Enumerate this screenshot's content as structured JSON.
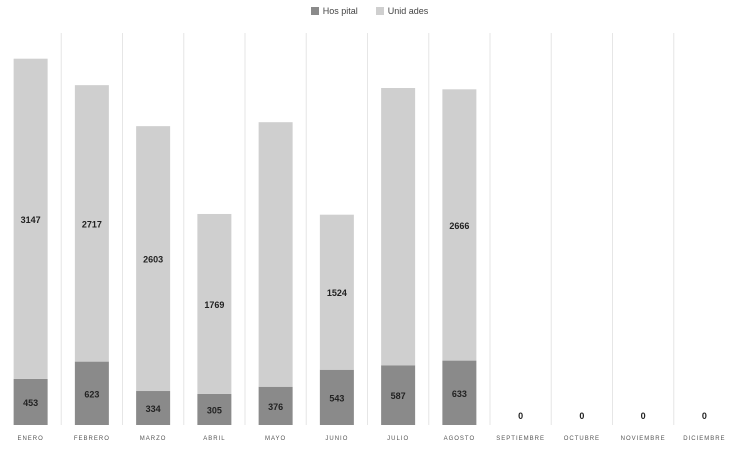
{
  "chart_data": {
    "type": "bar",
    "stacked": true,
    "categories": [
      "ENERO",
      "FEBRERO",
      "MARZO",
      "ABRIL",
      "MAYO",
      "JUNIO",
      "JULIO",
      "AGOSTO",
      "SEPTIEMBRE",
      "OCTUBRE",
      "NOVIEMBRE",
      "DICIEMBRE"
    ],
    "series": [
      {
        "name": "Hos pital",
        "values": [
          453,
          623,
          334,
          305,
          376,
          543,
          587,
          633,
          0,
          0,
          0,
          0
        ]
      },
      {
        "name": "Unid ades",
        "values": [
          3147,
          2717,
          2603,
          1769,
          2600,
          1524,
          2725,
          2666,
          0,
          0,
          0,
          0
        ]
      }
    ],
    "labels": {
      "bottom": [
        "453",
        "623",
        "334",
        "305",
        "376",
        "543",
        "587",
        "633",
        "",
        "",
        "",
        ""
      ],
      "top": [
        "3147",
        "2717",
        "2603",
        "1769",
        "",
        "1524",
        "",
        "2666",
        "0",
        "0",
        "0",
        "0"
      ]
    },
    "colors": {
      "hospital": "#8a8a8a",
      "unidades": "#cfcfcf"
    },
    "legend_position": "top",
    "grid": true,
    "ylim": [
      0,
      4000
    ]
  }
}
